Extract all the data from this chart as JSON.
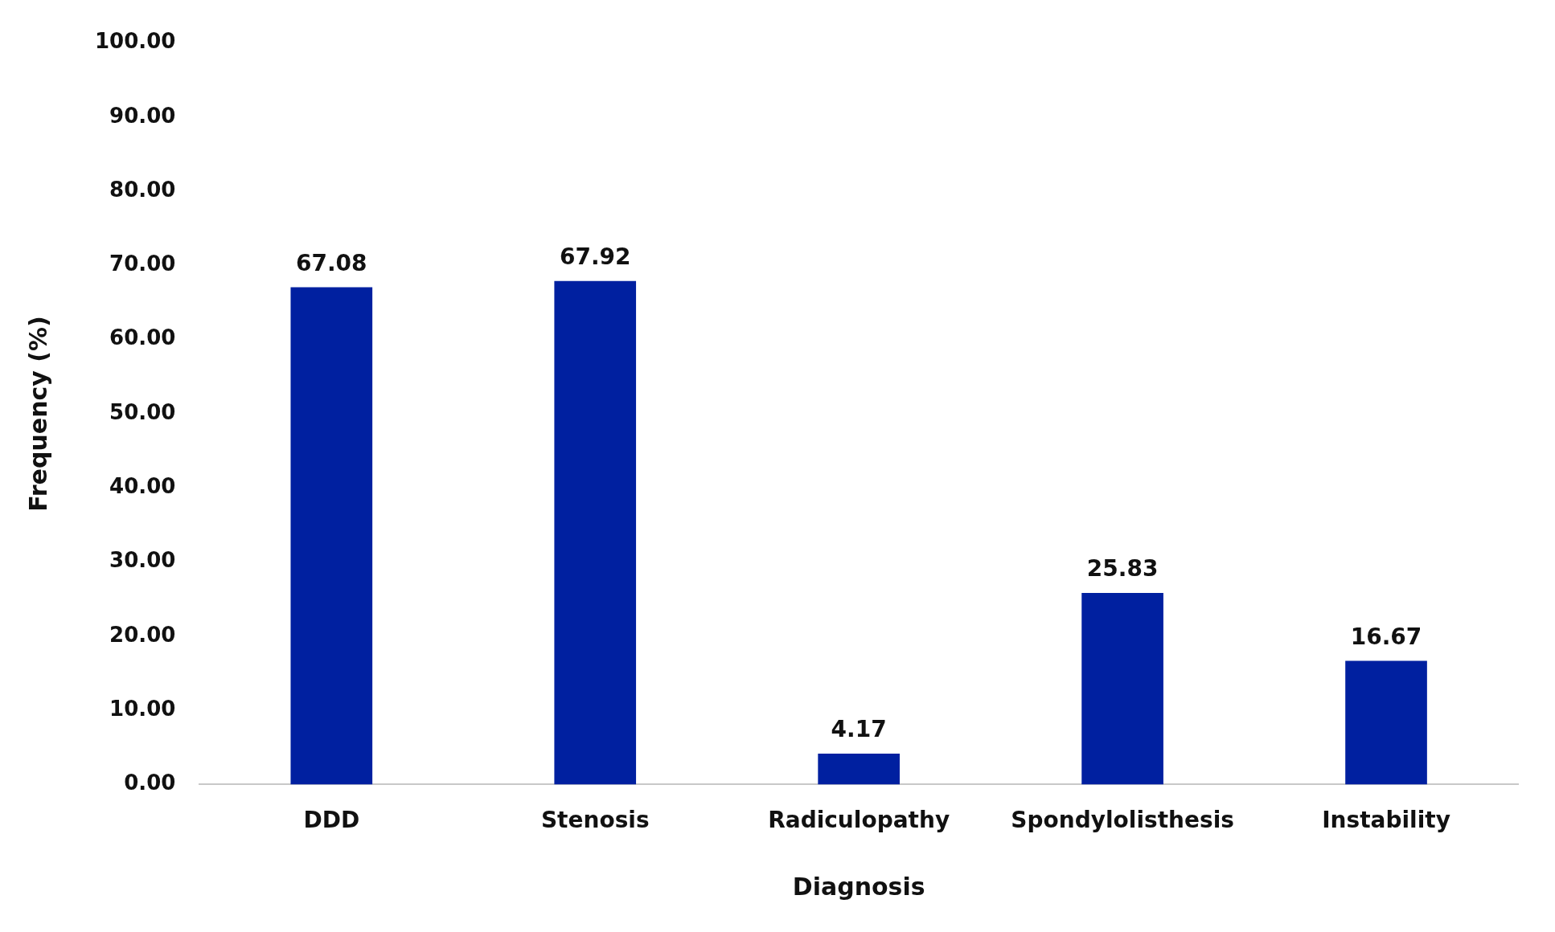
{
  "chart_data": {
    "type": "bar",
    "xlabel": "Diagnosis",
    "ylabel": "Frequency (%)",
    "categories": [
      "DDD",
      "Stenosis",
      "Radiculopathy",
      "Spondylolisthesis",
      "Instability"
    ],
    "values": [
      67.08,
      67.92,
      4.17,
      25.83,
      16.67
    ],
    "color": "#0020a0",
    "ylim": [
      0,
      100
    ],
    "yticks": [
      {
        "value": 0,
        "label": "0.00"
      },
      {
        "value": 10,
        "label": "10.00"
      },
      {
        "value": 20,
        "label": "20.00"
      },
      {
        "value": 30,
        "label": "30.00"
      },
      {
        "value": 40,
        "label": "40.00"
      },
      {
        "value": 50,
        "label": "50.00"
      },
      {
        "value": 60,
        "label": "60.00"
      },
      {
        "value": 70,
        "label": "70.00"
      },
      {
        "value": 80,
        "label": "80.00"
      },
      {
        "value": 90,
        "label": "90.00"
      },
      {
        "value": 100,
        "label": "100.00"
      }
    ],
    "grid": false,
    "legend": false,
    "data_labels": true
  }
}
